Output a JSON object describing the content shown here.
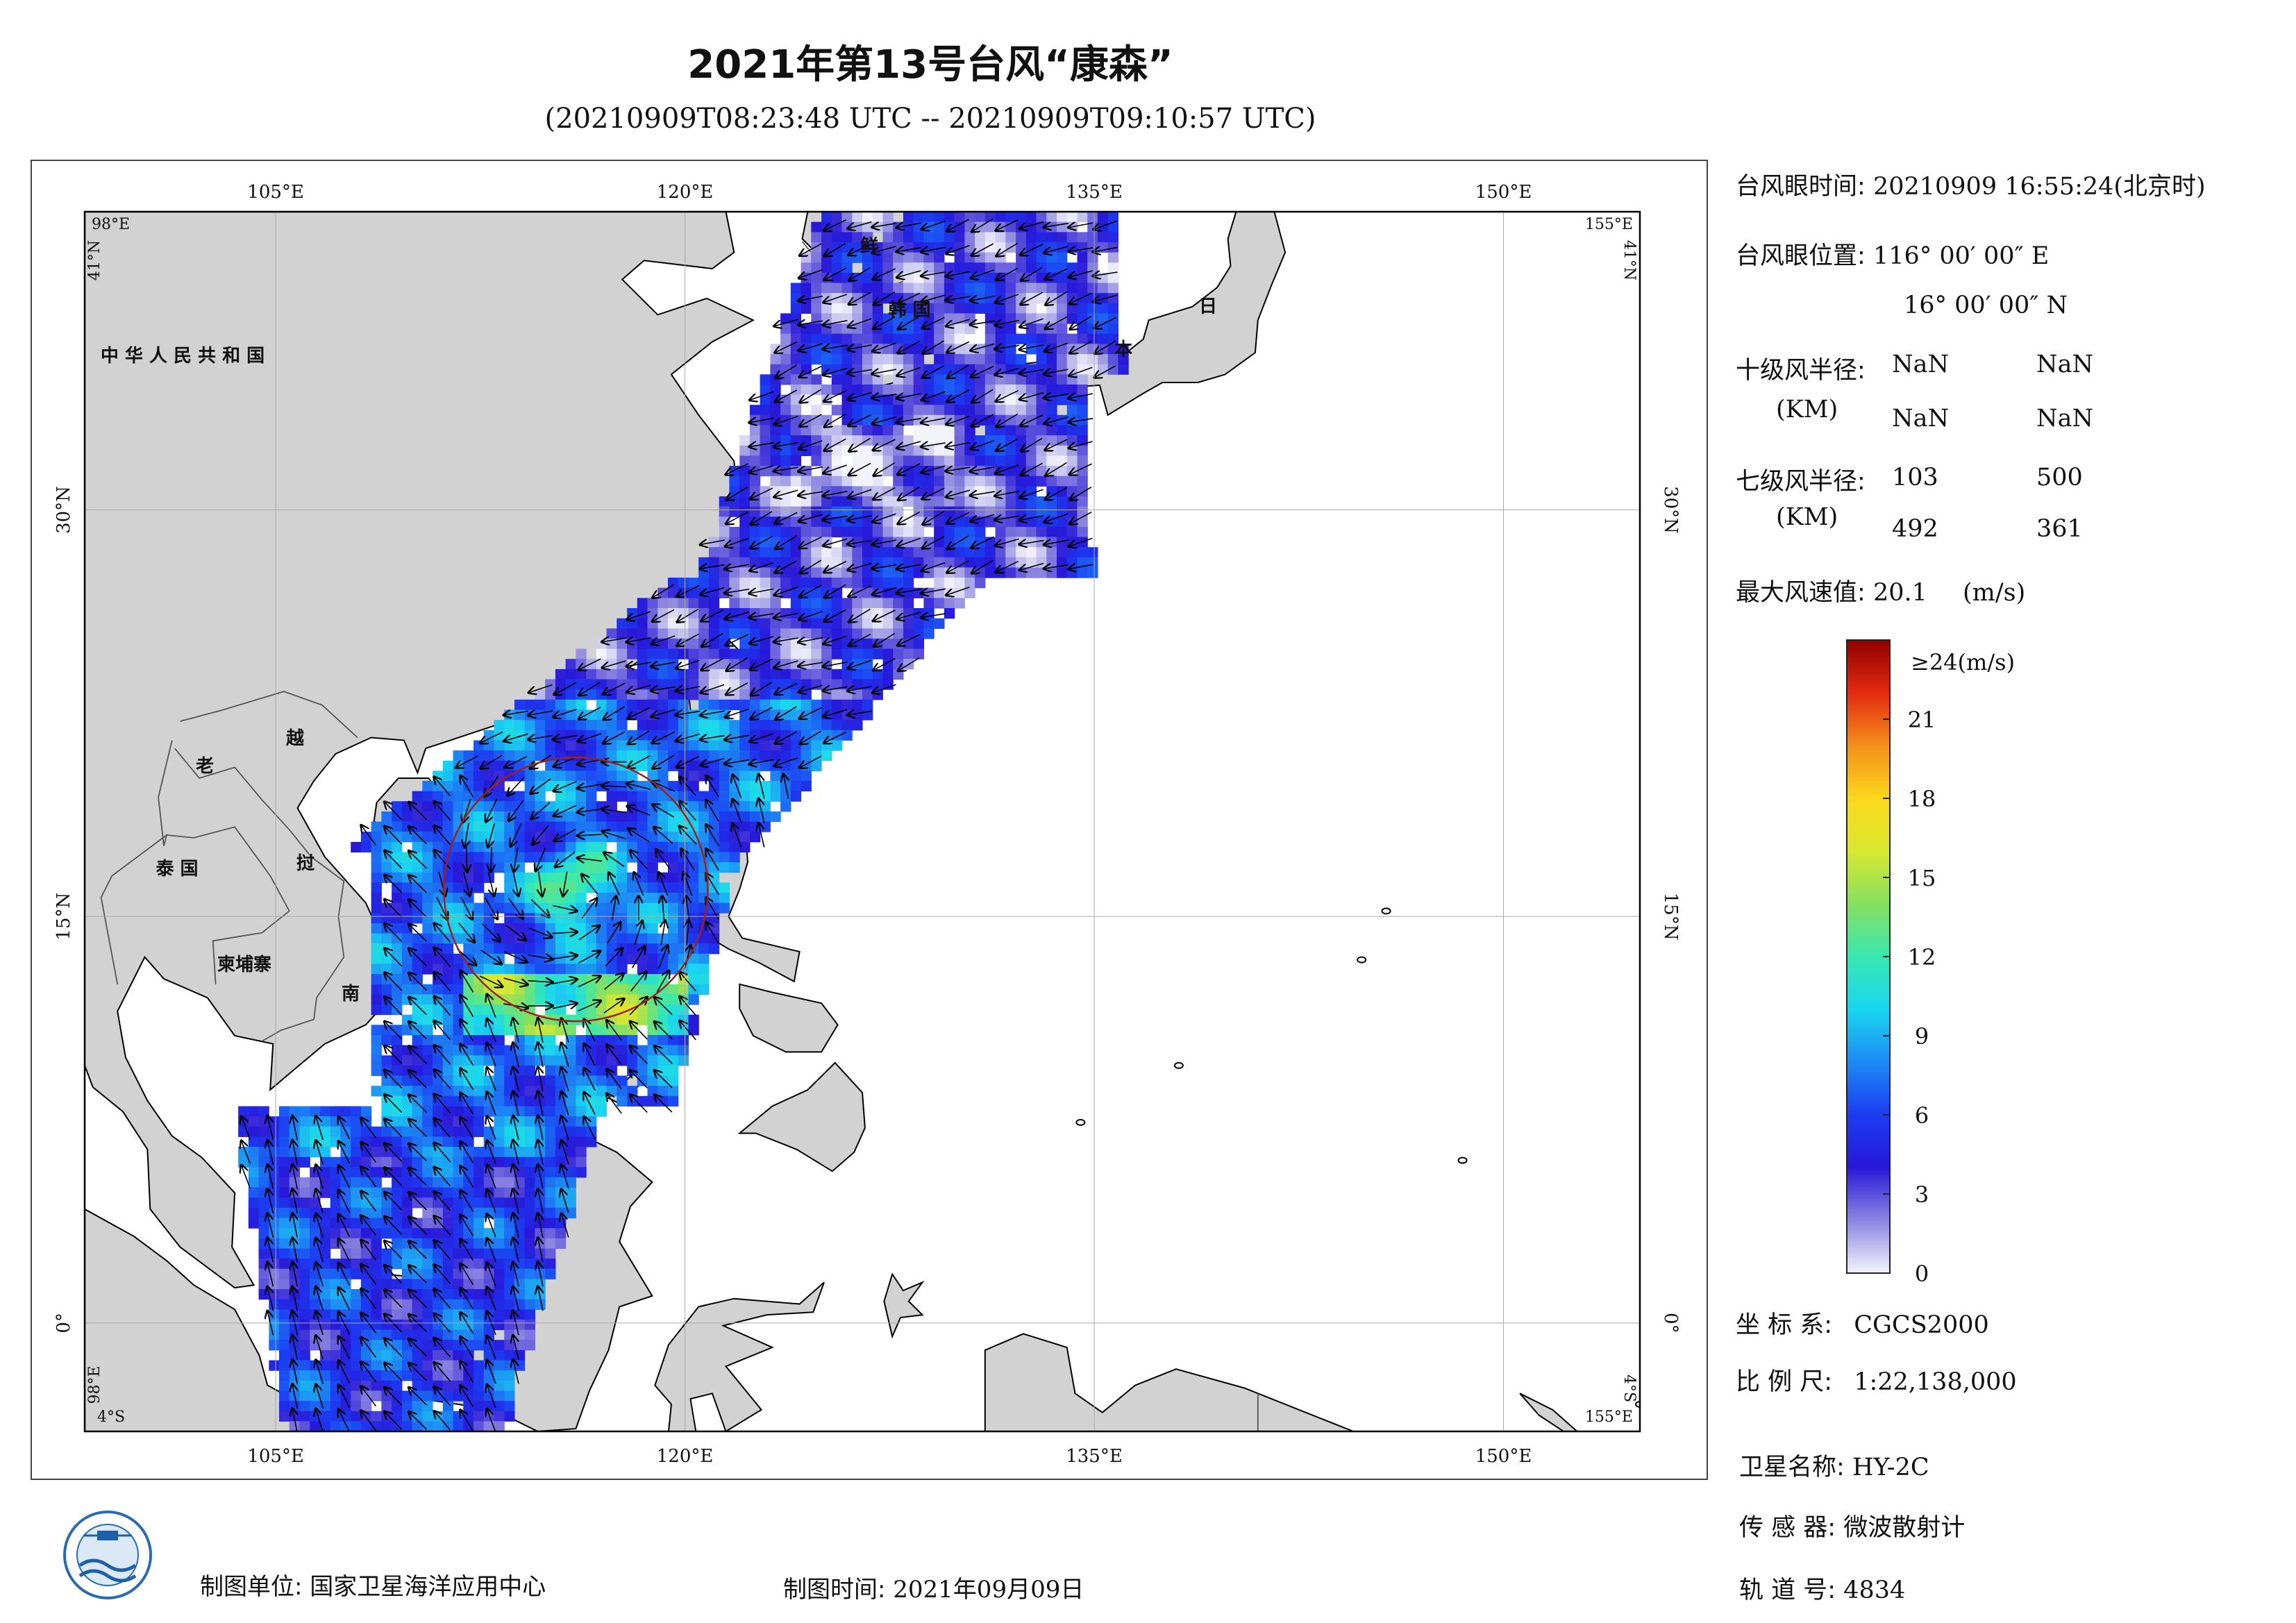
{
  "title": "2021年第13号台风“康森”",
  "subtitle": "(20210909T08:23:48 UTC -- 20210909T09:10:57 UTC)",
  "map": {
    "lon_top_ticks": [
      "105°E",
      "120°E",
      "135°E",
      "150°E"
    ],
    "lon_bottom_ticks": [
      "105°E",
      "120°E",
      "135°E",
      "150°E"
    ],
    "lat_left_ticks": [
      "30°N",
      "15°N",
      "0°"
    ],
    "lat_right_ticks": [
      "30°N",
      "15°N",
      "0°"
    ],
    "corner_tl_lon": "98°E",
    "corner_tl_lat": "41°N",
    "corner_tr_lon": "155°E",
    "corner_tr_lat": "41°N",
    "corner_bl_lat": "4°S",
    "corner_bl_lon": "98°E",
    "corner_br_lat": "4°S",
    "corner_br_lon": "155°E",
    "place_labels": [
      "中 华 人 民 共 和 国",
      "老",
      "越",
      "泰 国",
      "挝",
      "柬埔寨",
      "南",
      "鲜",
      "韩 国",
      "日",
      "本"
    ],
    "colors": {
      "land": "#d2d2d2",
      "ocean": "#ffffff",
      "typhoon_circle": "#a0201c"
    }
  },
  "info": {
    "eye_time_label": "台风眼时间:",
    "eye_time_value": "20210909 16:55:24(北京时)",
    "eye_pos_label": "台风眼位置:",
    "eye_pos_lon": "116° 00′ 00″ E",
    "eye_pos_lat": "16° 00′ 00″ N",
    "r10_label": "十级风半径:",
    "r10_unit": "(KM)",
    "r10_values": [
      "NaN",
      "NaN",
      "NaN",
      "NaN"
    ],
    "r7_label": "七级风半径:",
    "r7_unit": "(KM)",
    "r7_values": [
      "103",
      "500",
      "492",
      "361"
    ],
    "max_wind_label": "最大风速值:",
    "max_wind_value": "20.1",
    "max_wind_unit": "(m/s)"
  },
  "colorbar": {
    "top_label": "≥24(m/s)",
    "ticks": [
      "21",
      "18",
      "15",
      "12",
      "9",
      "6",
      "3",
      "0"
    ],
    "tick_values": [
      21,
      18,
      15,
      12,
      9,
      6,
      3,
      0
    ],
    "max": 24,
    "colors": [
      "#f3f3fb",
      "#8c86e0",
      "#2818d8",
      "#1c3cf2",
      "#1d8bf5",
      "#1ad6f0",
      "#38e8b0",
      "#86e060",
      "#d8e830",
      "#fcd81c",
      "#f4901a",
      "#e42a10",
      "#900000"
    ]
  },
  "meta": {
    "crs_label": "坐 标 系:",
    "crs_value": "CGCS2000",
    "scale_label": "比 例 尺:",
    "scale_value": "1:22,138,000",
    "satellite_label": "卫星名称:",
    "satellite_value": "HY-2C",
    "sensor_label": "传 感 器:",
    "sensor_value": "微波散射计",
    "orbit_label": "轨 道 号:",
    "orbit_value": "4834"
  },
  "footer": {
    "unit_label": "制图单位:",
    "unit_value": "国家卫星海洋应用中心",
    "date_label": "制图时间:",
    "date_value": "2021年09月09日"
  }
}
